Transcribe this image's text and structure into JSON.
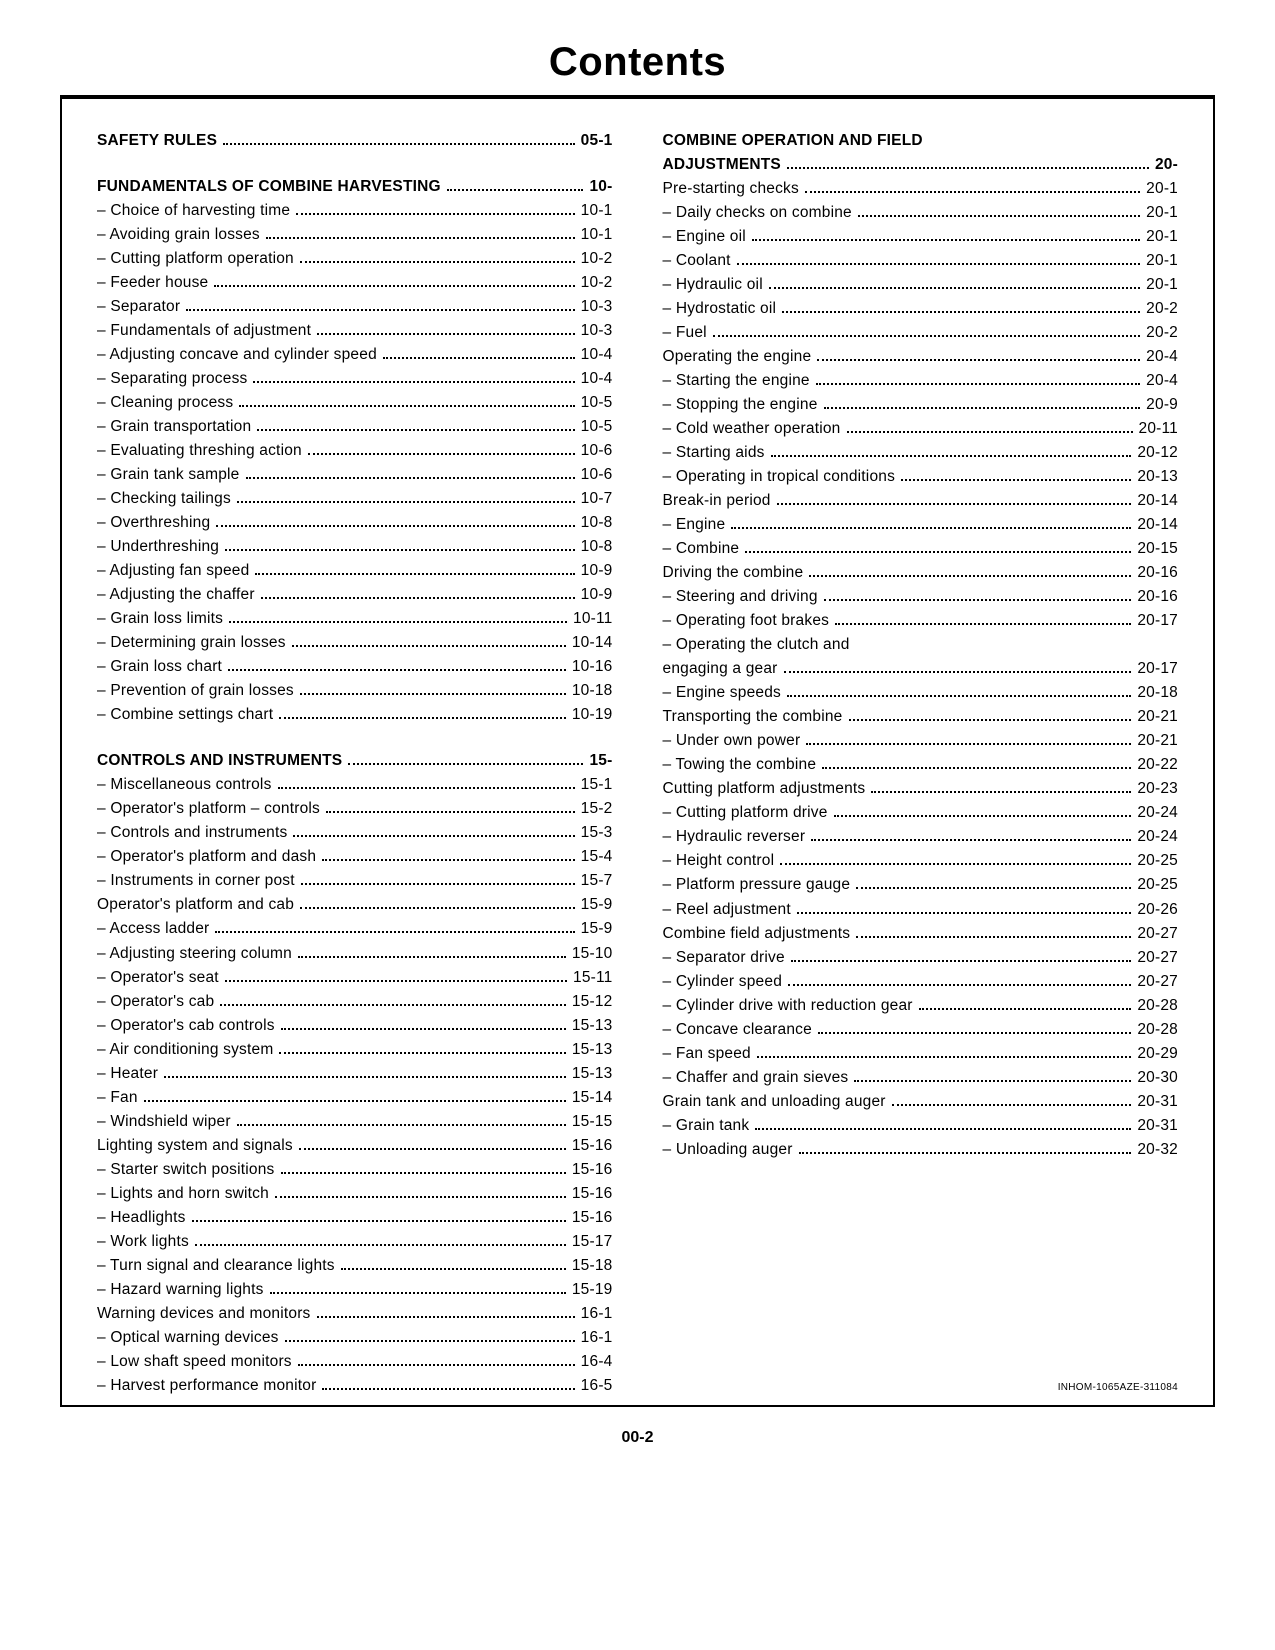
{
  "title": "Contents",
  "docref": "INHOM-1065AZE-311084",
  "page_number": "00-2",
  "columns": [
    [
      {
        "entries": [
          {
            "label": "SAFETY RULES",
            "page": "05-1",
            "bold": true
          }
        ]
      },
      {
        "entries": [
          {
            "label": "FUNDAMENTALS OF COMBINE HARVESTING",
            "page": "10-",
            "bold": true,
            "tightDots": true
          },
          {
            "label": "– Choice of harvesting time",
            "page": "10-1"
          },
          {
            "label": "– Avoiding grain losses",
            "page": "10-1"
          },
          {
            "label": "– Cutting platform operation",
            "page": "10-2"
          },
          {
            "label": "– Feeder house",
            "page": "10-2"
          },
          {
            "label": "– Separator",
            "page": "10-3"
          },
          {
            "label": "– Fundamentals of adjustment",
            "page": "10-3"
          },
          {
            "label": "– Adjusting concave and cylinder speed",
            "page": "10-4"
          },
          {
            "label": "– Separating process",
            "page": "10-4"
          },
          {
            "label": "– Cleaning process",
            "page": "10-5"
          },
          {
            "label": "– Grain transportation",
            "page": "10-5"
          },
          {
            "label": "– Evaluating threshing action",
            "page": "10-6"
          },
          {
            "label": "– Grain tank sample",
            "page": "10-6"
          },
          {
            "label": "– Checking tailings",
            "page": "10-7"
          },
          {
            "label": "– Overthreshing",
            "page": "10-8"
          },
          {
            "label": "– Underthreshing",
            "page": "10-8"
          },
          {
            "label": "– Adjusting fan speed",
            "page": "10-9"
          },
          {
            "label": "– Adjusting the chaffer",
            "page": "10-9"
          },
          {
            "label": "– Grain loss limits",
            "page": "10-11"
          },
          {
            "label": "– Determining grain losses",
            "page": "10-14"
          },
          {
            "label": "– Grain loss chart",
            "page": "10-16"
          },
          {
            "label": "– Prevention of grain losses",
            "page": "10-18"
          },
          {
            "label": "– Combine settings chart",
            "page": "10-19"
          }
        ]
      },
      {
        "entries": [
          {
            "label": "CONTROLS AND INSTRUMENTS",
            "page": "15-",
            "bold": true
          },
          {
            "label": "– Miscellaneous controls",
            "page": "15-1"
          },
          {
            "label": "– Operator's platform – controls",
            "page": "15-2"
          },
          {
            "label": "– Controls and instruments",
            "page": "15-3"
          },
          {
            "label": "– Operator's platform and dash",
            "page": "15-4"
          },
          {
            "label": "– Instruments in corner post",
            "page": "15-7"
          },
          {
            "label": "Operator's platform and cab",
            "page": "15-9"
          },
          {
            "label": "– Access ladder",
            "page": "15-9"
          },
          {
            "label": "– Adjusting steering column",
            "page": "15-10"
          },
          {
            "label": "– Operator's seat",
            "page": "15-11"
          },
          {
            "label": "– Operator's cab",
            "page": "15-12"
          },
          {
            "label": "– Operator's cab controls",
            "page": "15-13"
          },
          {
            "label": "– Air conditioning system",
            "page": "15-13"
          },
          {
            "label": "– Heater",
            "page": "15-13"
          },
          {
            "label": "– Fan",
            "page": "15-14"
          },
          {
            "label": "– Windshield wiper",
            "page": "15-15"
          },
          {
            "label": "Lighting system and signals",
            "page": "15-16"
          },
          {
            "label": "– Starter switch positions",
            "page": "15-16"
          },
          {
            "label": "– Lights and horn switch",
            "page": "15-16"
          },
          {
            "label": "– Headlights",
            "page": "15-16"
          },
          {
            "label": "– Work lights",
            "page": "15-17"
          },
          {
            "label": "– Turn signal and clearance lights",
            "page": "15-18"
          },
          {
            "label": "– Hazard warning lights",
            "page": "15-19"
          },
          {
            "label": "Warning devices and monitors",
            "page": "16-1"
          },
          {
            "label": "– Optical warning devices",
            "page": "16-1"
          },
          {
            "label": "– Low shaft speed monitors",
            "page": "16-4"
          },
          {
            "label": "– Harvest performance monitor",
            "page": "16-5"
          }
        ]
      }
    ],
    [
      {
        "entries": [
          {
            "label": "COMBINE OPERATION AND FIELD",
            "noPage": true,
            "bold": true
          },
          {
            "label": "ADJUSTMENTS",
            "page": "20-",
            "bold": true
          },
          {
            "label": "Pre-starting checks",
            "page": "20-1"
          },
          {
            "label": "– Daily checks on combine",
            "page": "20-1"
          },
          {
            "label": "– Engine oil",
            "page": "20-1"
          },
          {
            "label": "– Coolant",
            "page": "20-1"
          },
          {
            "label": "– Hydraulic oil",
            "page": "20-1"
          },
          {
            "label": "– Hydrostatic oil",
            "page": "20-2"
          },
          {
            "label": "– Fuel",
            "page": "20-2"
          },
          {
            "label": "Operating the engine",
            "page": "20-4"
          },
          {
            "label": "– Starting the engine",
            "page": "20-4"
          },
          {
            "label": "– Stopping the engine",
            "page": "20-9"
          },
          {
            "label": "– Cold weather operation",
            "page": "20-11"
          },
          {
            "label": "– Starting aids",
            "page": "20-12"
          },
          {
            "label": "– Operating in tropical conditions",
            "page": "20-13"
          },
          {
            "label": "Break-in period",
            "page": "20-14"
          },
          {
            "label": "– Engine",
            "page": "20-14"
          },
          {
            "label": "– Combine",
            "page": "20-15"
          },
          {
            "label": "Driving the combine",
            "page": "20-16"
          },
          {
            "label": "– Steering and driving",
            "page": "20-16"
          },
          {
            "label": "– Operating foot brakes",
            "page": "20-17"
          },
          {
            "label": "– Operating the clutch and",
            "noPage": true
          },
          {
            "label": "engaging a gear",
            "page": "20-17"
          },
          {
            "label": "– Engine speeds",
            "page": "20-18"
          },
          {
            "label": "Transporting the combine",
            "page": "20-21"
          },
          {
            "label": "– Under own power",
            "page": "20-21"
          },
          {
            "label": "– Towing the combine",
            "page": "20-22"
          },
          {
            "label": "Cutting platform adjustments",
            "page": "20-23"
          },
          {
            "label": "– Cutting platform drive",
            "page": "20-24"
          },
          {
            "label": "– Hydraulic reverser",
            "page": "20-24"
          },
          {
            "label": "– Height control",
            "page": "20-25"
          },
          {
            "label": "– Platform pressure gauge",
            "page": "20-25"
          },
          {
            "label": "– Reel adjustment",
            "page": "20-26"
          },
          {
            "label": "Combine field adjustments",
            "page": "20-27"
          },
          {
            "label": "– Separator drive",
            "page": "20-27"
          },
          {
            "label": "– Cylinder speed",
            "page": "20-27"
          },
          {
            "label": "– Cylinder drive with reduction gear",
            "page": "20-28"
          },
          {
            "label": "– Concave clearance",
            "page": "20-28"
          },
          {
            "label": "– Fan speed",
            "page": "20-29"
          },
          {
            "label": "– Chaffer and grain sieves",
            "page": "20-30"
          },
          {
            "label": "Grain tank and unloading auger",
            "page": "20-31"
          },
          {
            "label": "– Grain tank",
            "page": "20-31"
          },
          {
            "label": "– Unloading auger",
            "page": "20-32"
          }
        ]
      }
    ]
  ]
}
